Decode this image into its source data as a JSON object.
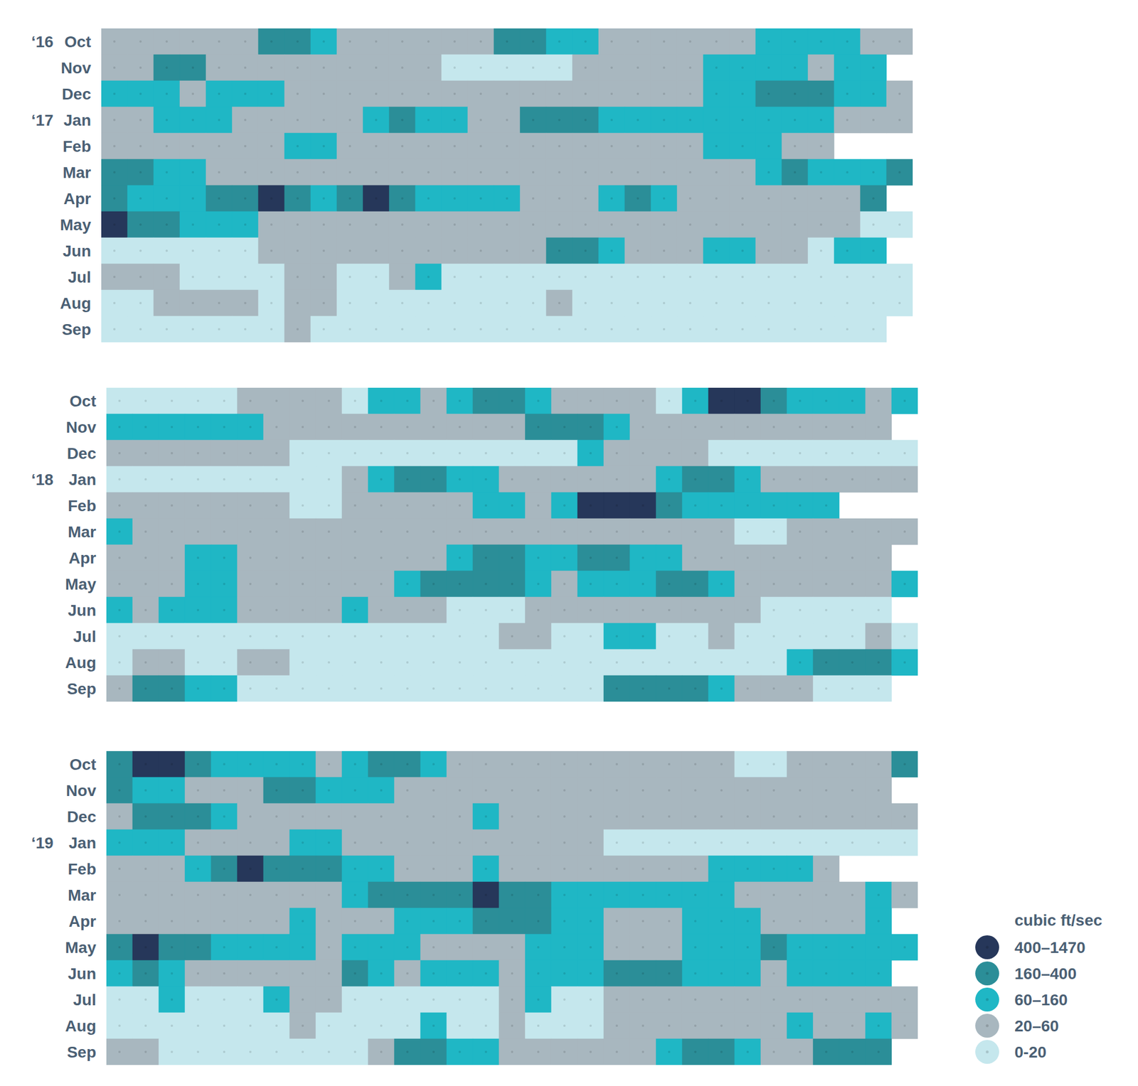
{
  "chart_data": [
    {
      "type": "heatmap",
      "rows": [
        "Oct",
        "Nov",
        "Dec",
        "Jan",
        "Feb",
        "Mar",
        "Apr",
        "May",
        "Jun",
        "Jul",
        "Aug",
        "Sep"
      ],
      "year_labels": [
        "‘16",
        null,
        null,
        "‘17",
        null,
        null,
        null,
        null,
        null,
        null,
        null,
        null
      ],
      "cells": [
        [
          40,
          40,
          40,
          40,
          40,
          40,
          250,
          250,
          100,
          40,
          40,
          40,
          40,
          40,
          40,
          250,
          250,
          100,
          100,
          40,
          40,
          40,
          40,
          40,
          40,
          100,
          100,
          100,
          100,
          40,
          40
        ],
        [
          40,
          40,
          250,
          250,
          40,
          40,
          40,
          40,
          40,
          40,
          40,
          40,
          40,
          10,
          10,
          10,
          10,
          10,
          40,
          40,
          40,
          40,
          40,
          100,
          100,
          100,
          100,
          40,
          100,
          100
        ],
        [
          100,
          100,
          100,
          40,
          100,
          100,
          100,
          40,
          40,
          40,
          40,
          40,
          40,
          40,
          40,
          40,
          40,
          40,
          40,
          40,
          40,
          40,
          40,
          100,
          100,
          250,
          250,
          250,
          100,
          100,
          40
        ],
        [
          40,
          40,
          100,
          100,
          100,
          40,
          40,
          40,
          40,
          40,
          100,
          250,
          100,
          100,
          40,
          40,
          250,
          250,
          250,
          100,
          100,
          100,
          100,
          100,
          100,
          100,
          100,
          100,
          40,
          40,
          40
        ],
        [
          40,
          40,
          40,
          40,
          40,
          40,
          40,
          100,
          100,
          40,
          40,
          40,
          40,
          40,
          40,
          40,
          40,
          40,
          40,
          40,
          40,
          40,
          40,
          100,
          100,
          100,
          40,
          40
        ],
        [
          250,
          250,
          100,
          100,
          40,
          40,
          40,
          40,
          40,
          40,
          40,
          40,
          40,
          40,
          40,
          40,
          40,
          40,
          40,
          40,
          40,
          40,
          40,
          40,
          40,
          100,
          250,
          100,
          100,
          100,
          250
        ],
        [
          250,
          100,
          100,
          100,
          250,
          250,
          600,
          250,
          100,
          250,
          600,
          250,
          100,
          100,
          100,
          100,
          40,
          40,
          40,
          100,
          250,
          100,
          40,
          40,
          40,
          40,
          40,
          40,
          40,
          250
        ],
        [
          600,
          250,
          250,
          100,
          100,
          100,
          40,
          40,
          40,
          40,
          40,
          40,
          40,
          40,
          40,
          40,
          40,
          40,
          40,
          40,
          40,
          40,
          40,
          40,
          40,
          40,
          40,
          40,
          40,
          10,
          10
        ],
        [
          10,
          10,
          10,
          10,
          10,
          10,
          40,
          40,
          40,
          40,
          40,
          40,
          40,
          40,
          40,
          40,
          40,
          250,
          250,
          100,
          40,
          40,
          40,
          100,
          100,
          40,
          40,
          10,
          100,
          100
        ],
        [
          40,
          40,
          40,
          10,
          10,
          10,
          10,
          40,
          40,
          10,
          10,
          40,
          100,
          10,
          10,
          10,
          10,
          10,
          10,
          10,
          10,
          10,
          10,
          10,
          10,
          10,
          10,
          10,
          10,
          10,
          10
        ],
        [
          10,
          10,
          40,
          40,
          40,
          40,
          10,
          40,
          40,
          10,
          10,
          10,
          10,
          10,
          10,
          10,
          10,
          40,
          10,
          10,
          10,
          10,
          10,
          10,
          10,
          10,
          10,
          10,
          10,
          10,
          10
        ],
        [
          10,
          10,
          10,
          10,
          10,
          10,
          10,
          40,
          10,
          10,
          10,
          10,
          10,
          10,
          10,
          10,
          10,
          10,
          10,
          10,
          10,
          10,
          10,
          10,
          10,
          10,
          10,
          10,
          10,
          10
        ]
      ]
    },
    {
      "type": "heatmap",
      "rows": [
        "Oct",
        "Nov",
        "Dec",
        "Jan",
        "Feb",
        "Mar",
        "Apr",
        "May",
        "Jun",
        "Jul",
        "Aug",
        "Sep"
      ],
      "year_labels": [
        null,
        null,
        null,
        "‘18",
        null,
        null,
        null,
        null,
        null,
        null,
        null,
        null
      ],
      "cells": [
        [
          10,
          10,
          10,
          10,
          10,
          40,
          40,
          40,
          40,
          10,
          100,
          100,
          40,
          100,
          250,
          250,
          100,
          40,
          40,
          40,
          40,
          10,
          100,
          600,
          600,
          250,
          100,
          100,
          100,
          40,
          100
        ],
        [
          100,
          100,
          100,
          100,
          100,
          100,
          40,
          40,
          40,
          40,
          40,
          40,
          40,
          40,
          40,
          40,
          250,
          250,
          250,
          100,
          40,
          40,
          40,
          40,
          40,
          40,
          40,
          40,
          40,
          40
        ],
        [
          40,
          40,
          40,
          40,
          40,
          40,
          40,
          10,
          10,
          10,
          10,
          10,
          10,
          10,
          10,
          10,
          10,
          10,
          100,
          40,
          40,
          40,
          40,
          10,
          10,
          10,
          10,
          10,
          10,
          10,
          10
        ],
        [
          10,
          10,
          10,
          10,
          10,
          10,
          10,
          10,
          10,
          40,
          100,
          250,
          250,
          100,
          100,
          40,
          40,
          40,
          40,
          40,
          40,
          100,
          250,
          250,
          100,
          40,
          40,
          40,
          40,
          40,
          40
        ],
        [
          40,
          40,
          40,
          40,
          40,
          40,
          40,
          10,
          10,
          40,
          40,
          40,
          40,
          40,
          100,
          100,
          40,
          100,
          600,
          600,
          600,
          250,
          100,
          100,
          100,
          100,
          100,
          100
        ],
        [
          100,
          40,
          40,
          40,
          40,
          40,
          40,
          40,
          40,
          40,
          40,
          40,
          40,
          40,
          40,
          40,
          40,
          40,
          40,
          40,
          40,
          40,
          40,
          40,
          10,
          10,
          40,
          40,
          40,
          40,
          40
        ],
        [
          40,
          40,
          40,
          100,
          100,
          40,
          40,
          40,
          40,
          40,
          40,
          40,
          40,
          100,
          250,
          250,
          100,
          100,
          250,
          250,
          100,
          100,
          40,
          40,
          40,
          40,
          40,
          40,
          40,
          40
        ],
        [
          40,
          40,
          40,
          100,
          100,
          40,
          40,
          40,
          40,
          40,
          40,
          100,
          250,
          250,
          250,
          250,
          100,
          40,
          100,
          100,
          100,
          250,
          250,
          100,
          40,
          40,
          40,
          40,
          40,
          40,
          100
        ],
        [
          100,
          40,
          100,
          100,
          100,
          40,
          40,
          40,
          40,
          100,
          40,
          40,
          40,
          10,
          10,
          10,
          40,
          40,
          40,
          40,
          40,
          40,
          40,
          40,
          40,
          10,
          10,
          10,
          10,
          10
        ],
        [
          10,
          10,
          10,
          10,
          10,
          10,
          10,
          10,
          10,
          10,
          10,
          10,
          10,
          10,
          10,
          40,
          40,
          10,
          10,
          100,
          100,
          10,
          10,
          40,
          10,
          10,
          10,
          10,
          10,
          40,
          10
        ],
        [
          10,
          40,
          40,
          10,
          10,
          40,
          40,
          10,
          10,
          10,
          10,
          10,
          10,
          10,
          10,
          10,
          10,
          10,
          10,
          10,
          10,
          10,
          10,
          10,
          10,
          10,
          100,
          250,
          250,
          250,
          100
        ],
        [
          40,
          250,
          250,
          100,
          100,
          10,
          10,
          10,
          10,
          10,
          10,
          10,
          10,
          10,
          10,
          10,
          10,
          10,
          10,
          250,
          250,
          250,
          250,
          100,
          40,
          40,
          40,
          10,
          10,
          10
        ]
      ]
    },
    {
      "type": "heatmap",
      "rows": [
        "Oct",
        "Nov",
        "Dec",
        "Jan",
        "Feb",
        "Mar",
        "Apr",
        "May",
        "Jun",
        "Jul",
        "Aug",
        "Sep"
      ],
      "year_labels": [
        null,
        null,
        null,
        "‘19",
        null,
        null,
        null,
        null,
        null,
        null,
        null,
        null
      ],
      "cells": [
        [
          250,
          600,
          600,
          250,
          100,
          100,
          100,
          100,
          40,
          100,
          250,
          250,
          100,
          40,
          40,
          40,
          40,
          40,
          40,
          40,
          40,
          40,
          40,
          40,
          10,
          10,
          40,
          40,
          40,
          40,
          250
        ],
        [
          250,
          100,
          100,
          40,
          40,
          40,
          250,
          250,
          100,
          100,
          100,
          40,
          40,
          40,
          40,
          40,
          40,
          40,
          40,
          40,
          40,
          40,
          40,
          40,
          40,
          40,
          40,
          40,
          40,
          40
        ],
        [
          40,
          250,
          250,
          250,
          100,
          40,
          40,
          40,
          40,
          40,
          40,
          40,
          40,
          40,
          100,
          40,
          40,
          40,
          40,
          40,
          40,
          40,
          40,
          40,
          40,
          40,
          40,
          40,
          40,
          40,
          40
        ],
        [
          100,
          100,
          100,
          40,
          40,
          40,
          40,
          100,
          100,
          40,
          40,
          40,
          40,
          40,
          40,
          40,
          40,
          40,
          40,
          10,
          10,
          10,
          10,
          10,
          10,
          10,
          10,
          10,
          10,
          10,
          10
        ],
        [
          40,
          40,
          40,
          100,
          250,
          600,
          250,
          250,
          250,
          100,
          100,
          40,
          40,
          40,
          100,
          40,
          40,
          40,
          40,
          40,
          40,
          40,
          40,
          100,
          100,
          100,
          100,
          40
        ],
        [
          40,
          40,
          40,
          40,
          40,
          40,
          40,
          40,
          40,
          100,
          250,
          250,
          250,
          250,
          600,
          250,
          250,
          100,
          100,
          100,
          100,
          100,
          100,
          100,
          40,
          40,
          40,
          40,
          40,
          100,
          40
        ],
        [
          40,
          40,
          40,
          40,
          40,
          40,
          40,
          100,
          40,
          40,
          40,
          100,
          100,
          100,
          250,
          250,
          250,
          100,
          100,
          40,
          40,
          40,
          100,
          100,
          100,
          40,
          40,
          40,
          40,
          100
        ],
        [
          250,
          600,
          250,
          250,
          100,
          100,
          100,
          100,
          40,
          100,
          100,
          100,
          40,
          40,
          40,
          40,
          100,
          100,
          100,
          40,
          40,
          40,
          100,
          100,
          100,
          250,
          100,
          100,
          100,
          100,
          100
        ],
        [
          100,
          250,
          100,
          40,
          40,
          40,
          40,
          40,
          40,
          250,
          100,
          40,
          100,
          100,
          100,
          40,
          100,
          100,
          100,
          250,
          250,
          250,
          100,
          100,
          100,
          40,
          100,
          100,
          100,
          100
        ],
        [
          10,
          10,
          100,
          10,
          10,
          10,
          100,
          40,
          40,
          10,
          10,
          10,
          10,
          10,
          10,
          40,
          100,
          10,
          10,
          40,
          40,
          40,
          40,
          40,
          40,
          40,
          40,
          40,
          40,
          40,
          40
        ],
        [
          10,
          10,
          10,
          10,
          10,
          10,
          10,
          40,
          10,
          10,
          10,
          10,
          100,
          10,
          10,
          40,
          10,
          10,
          10,
          40,
          40,
          40,
          40,
          40,
          40,
          40,
          100,
          40,
          40,
          100,
          40
        ],
        [
          40,
          40,
          10,
          10,
          10,
          10,
          10,
          10,
          10,
          10,
          40,
          250,
          250,
          100,
          100,
          40,
          40,
          40,
          40,
          40,
          40,
          100,
          250,
          250,
          100,
          40,
          40,
          250,
          250,
          250
        ]
      ],
      "color_bar": {
        "title": "cubic ft/sec",
        "ticks": [
          0,
          20,
          60,
          160,
          400,
          1470
        ],
        "labels": [
          "0-20",
          "20–60",
          "60–160",
          "160–400",
          "400–1470"
        ],
        "colors": [
          "#c5e7ed",
          "#a8b7bf",
          "#1fb7c5",
          "#2b8e98",
          "#26375a"
        ]
      }
    }
  ]
}
